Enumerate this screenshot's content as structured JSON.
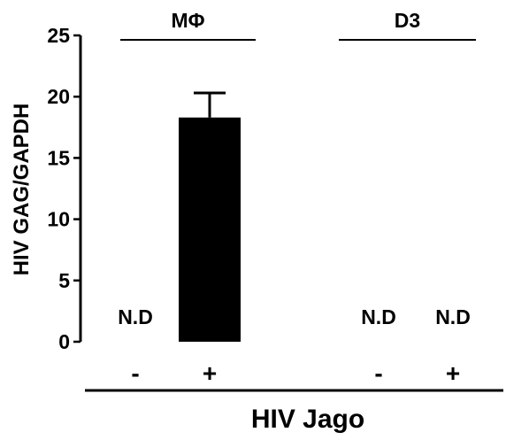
{
  "chart_data": {
    "type": "bar",
    "ylabel": "HIV GAG/GAPDH",
    "xlabel": "HIV Jago",
    "ylim": [
      0,
      25
    ],
    "yticks": [
      0,
      5,
      10,
      15,
      20,
      25
    ],
    "groups": [
      {
        "label": "MΦ",
        "categories": [
          "-",
          "+"
        ]
      },
      {
        "label": "D3",
        "categories": [
          "-",
          "+"
        ]
      }
    ],
    "categories": [
      "-",
      "+",
      "-",
      "+"
    ],
    "values": [
      null,
      18.3,
      null,
      null
    ],
    "errors": [
      null,
      2.0,
      null,
      null
    ],
    "annotations": [
      "N.D",
      "",
      "N.D",
      "N.D"
    ],
    "bar_color": "#000000"
  }
}
